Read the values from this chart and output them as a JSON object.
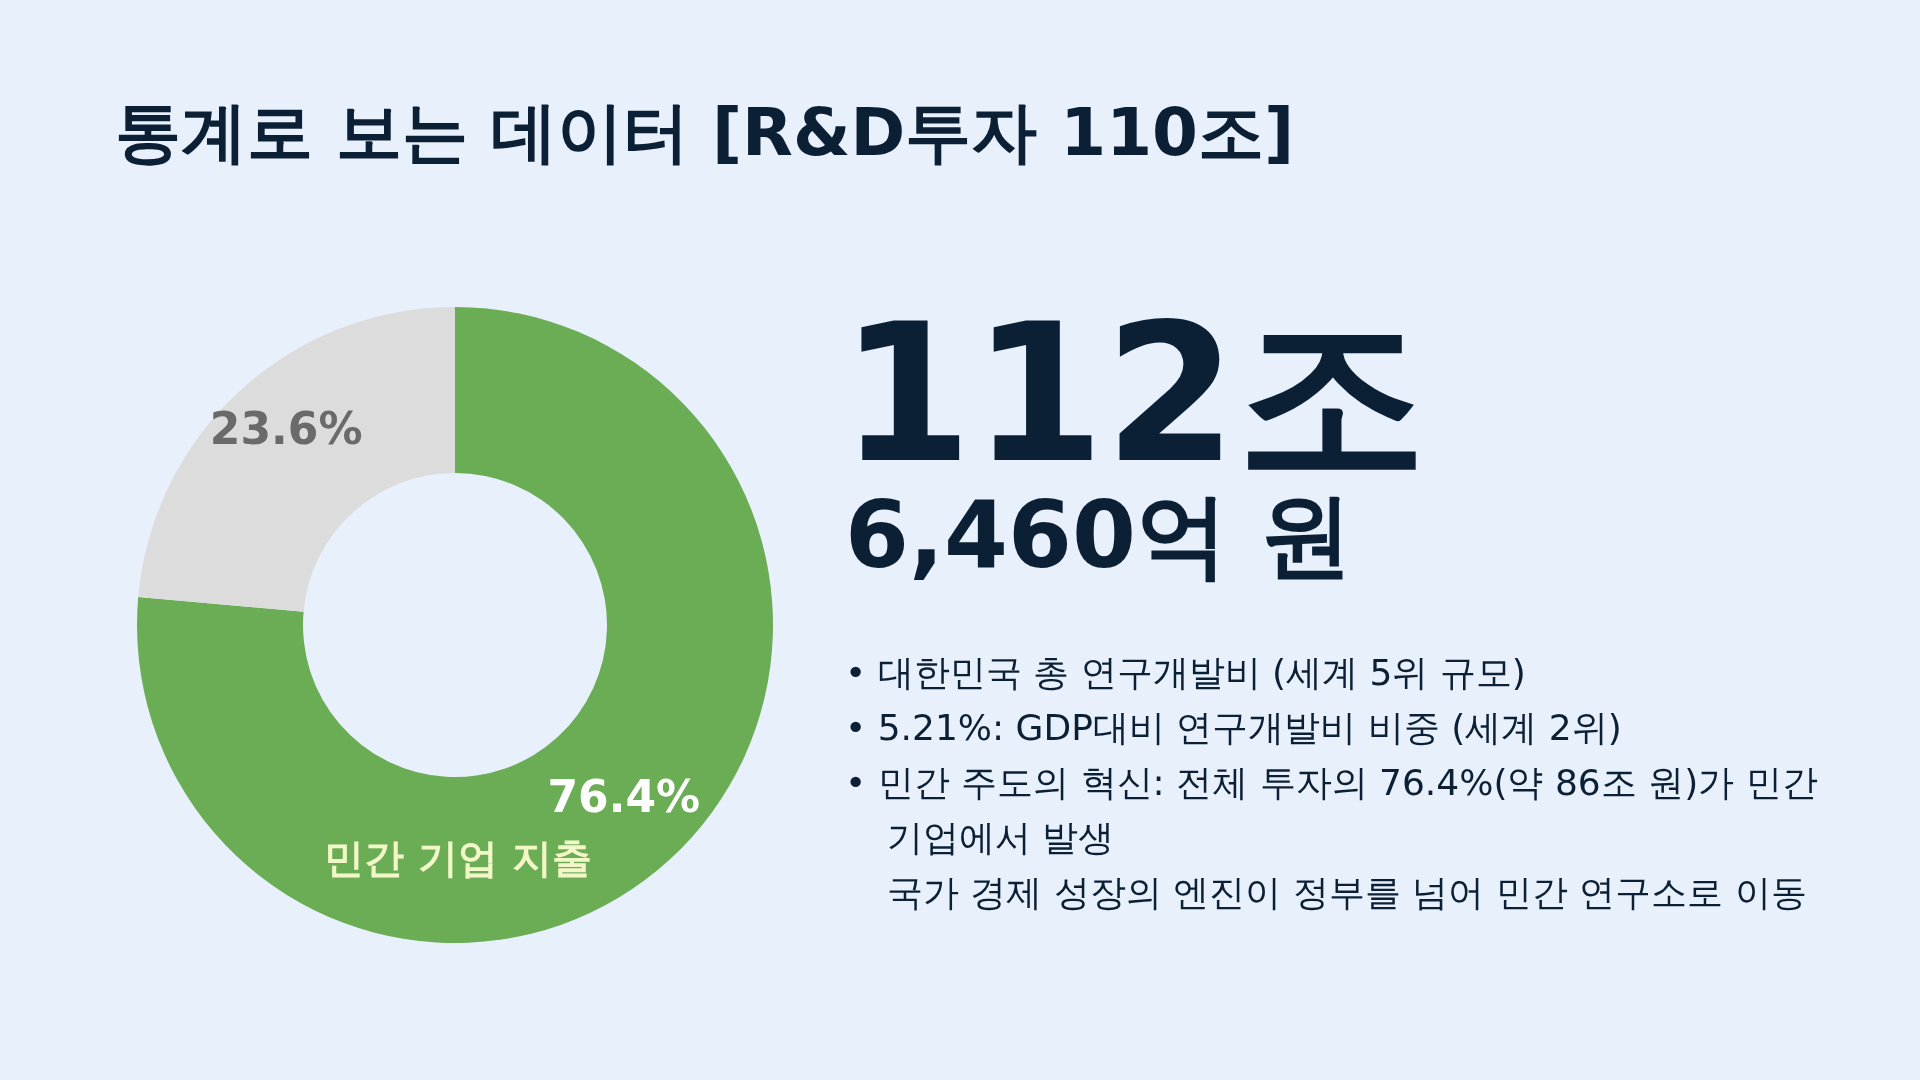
{
  "chart_data": {
    "type": "donut",
    "title": "통계로 보는 데이터 [R&D투자 110조]",
    "categories": [
      "민간 기업 지출",
      null
    ],
    "values": [
      76.4,
      23.6
    ],
    "value_labels": [
      "76.4%",
      "23.6%"
    ],
    "colors": [
      "#6aad55",
      "#dcdcdc"
    ],
    "annotations": [
      "112조",
      "6,460억 원",
      "• 대한민국 총 연구개발비 (세계 5위 규모)",
      "• 5.21%: GDP대비 연구개발비 비중 (세계 2위)",
      "• 민간 주도의 혁신: 전체 투자의 76.4%(약 86조 원)가 민간 기업에서 발생",
      "국가 경제 성장의 엔진이 정부를 넘어 민간 연구소로 이동"
    ]
  }
}
